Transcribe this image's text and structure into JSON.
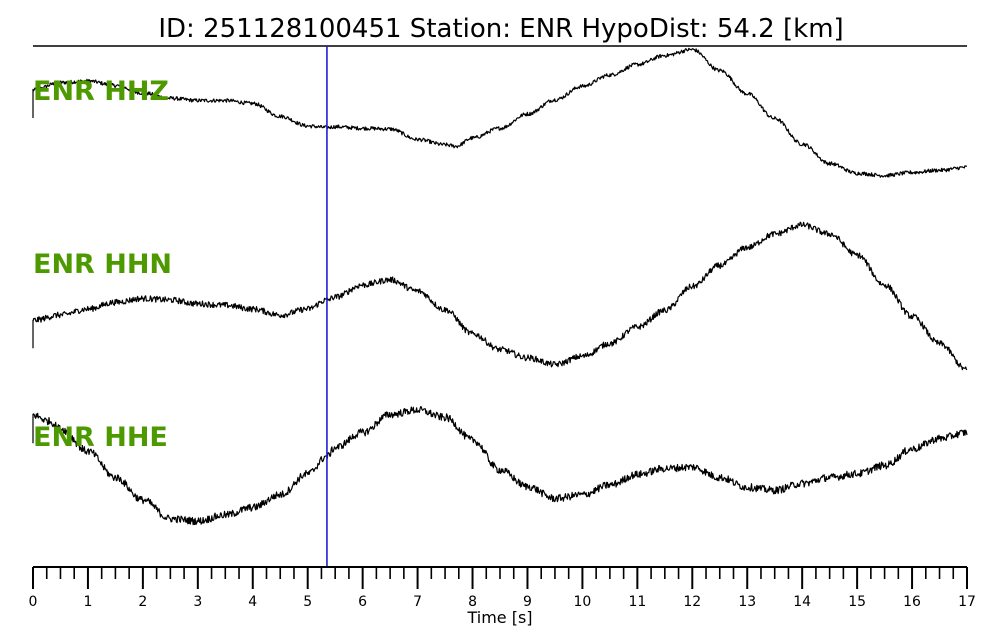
{
  "header": {
    "title": "ID: 251128100451   Station: ENR   HypoDist:    54.2 [km]"
  },
  "colors": {
    "trace": "#000000",
    "pick_line": "#1f1fd6",
    "channel_label": "#4d9900"
  },
  "chart_data": {
    "type": "line",
    "title": "ID: 251128100451   Station: ENR   HypoDist:    54.2 [km]",
    "xlabel": "Time [s]",
    "ylabel": "",
    "xlim": [
      0,
      17
    ],
    "xticks": [
      "0",
      "1",
      "2",
      "3",
      "4",
      "5",
      "6",
      "7",
      "8",
      "9",
      "10",
      "11",
      "12",
      "13",
      "14",
      "15",
      "16",
      "17"
    ],
    "minor_tick_step": 0.25,
    "grid": false,
    "pick_time": 5.35,
    "series": [
      {
        "name": "ENR HHZ",
        "x": [
          0,
          0.5,
          1,
          1.5,
          2,
          2.5,
          3,
          3.5,
          4,
          4.5,
          5,
          5.35,
          5.5,
          6,
          6.5,
          7,
          7.5,
          7.7,
          8,
          8.5,
          9,
          9.5,
          10,
          10.5,
          11,
          11.5,
          12,
          12.5,
          13,
          13.5,
          14,
          14.5,
          15,
          15.5,
          16,
          16.5,
          17
        ],
        "y": [
          0.8,
          0.9,
          0.92,
          0.86,
          0.76,
          0.69,
          0.66,
          0.66,
          0.62,
          0.45,
          0.32,
          0.3,
          0.31,
          0.29,
          0.28,
          0.14,
          0.07,
          0.05,
          0.16,
          0.29,
          0.48,
          0.67,
          0.85,
          1.0,
          1.14,
          1.26,
          1.34,
          1.06,
          0.75,
          0.42,
          0.08,
          -0.18,
          -0.31,
          -0.34,
          -0.3,
          -0.27,
          -0.23
        ],
        "noise": 0.025
      },
      {
        "name": "ENR HHN",
        "x": [
          0,
          0.5,
          1,
          1.5,
          2,
          2.5,
          3,
          3.5,
          4,
          4.5,
          5,
          5.35,
          5.5,
          6,
          6.5,
          7,
          7.5,
          8,
          8.5,
          9,
          9.5,
          10,
          10.5,
          11,
          11.5,
          12,
          12.5,
          13,
          13.5,
          14,
          14.5,
          15,
          15.5,
          16,
          16.5,
          17
        ],
        "y": [
          -0.27,
          -0.2,
          -0.12,
          -0.03,
          0.02,
          0.0,
          -0.05,
          -0.07,
          -0.12,
          -0.2,
          -0.12,
          0.0,
          0.04,
          0.2,
          0.27,
          0.12,
          -0.13,
          -0.45,
          -0.66,
          -0.77,
          -0.86,
          -0.75,
          -0.58,
          -0.36,
          -0.14,
          0.18,
          0.46,
          0.7,
          0.88,
          1.0,
          0.88,
          0.6,
          0.2,
          -0.22,
          -0.58,
          -0.93
        ],
        "noise": 0.04
      },
      {
        "name": "ENR HHE",
        "x": [
          0,
          0.3,
          0.5,
          1,
          1.5,
          2,
          2.5,
          3,
          3.5,
          4,
          4.5,
          5,
          5.35,
          5.5,
          6,
          6.5,
          7,
          7.5,
          8,
          8.5,
          9,
          9.5,
          10,
          10.5,
          11,
          11.5,
          12,
          12.5,
          13,
          13.5,
          14,
          14.5,
          15,
          15.5,
          16,
          16.5,
          17
        ],
        "y": [
          0.73,
          0.65,
          0.55,
          0.25,
          -0.1,
          -0.4,
          -0.65,
          -0.68,
          -0.6,
          -0.5,
          -0.33,
          -0.05,
          0.18,
          0.3,
          0.5,
          0.74,
          0.8,
          0.7,
          0.4,
          0.0,
          -0.22,
          -0.38,
          -0.33,
          -0.2,
          -0.06,
          0.02,
          0.04,
          -0.1,
          -0.23,
          -0.27,
          -0.18,
          -0.1,
          -0.05,
          0.06,
          0.28,
          0.42,
          0.5
        ],
        "noise": 0.05
      }
    ]
  }
}
